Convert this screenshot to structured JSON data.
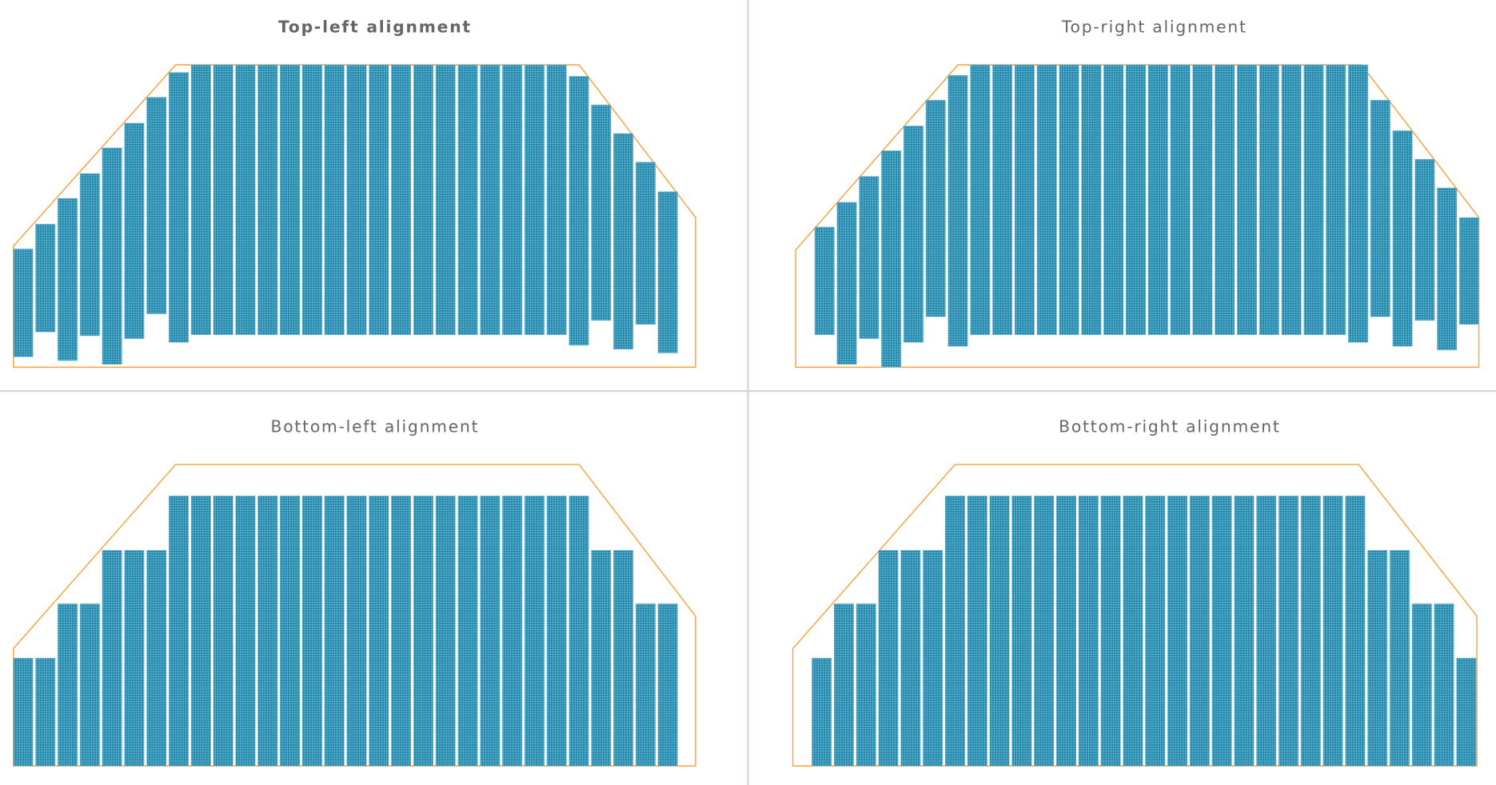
{
  "panels": [
    {
      "title": "Top-left alignment"
    },
    {
      "title": "Top-right alignment"
    },
    {
      "title": "Bottom-left alignment"
    },
    {
      "title": "Bottom-right alignment"
    }
  ],
  "colors": {
    "outline": "#f7a23a",
    "panel_fill": "#1a80a4",
    "panel_grid": "#5fb2cf",
    "divider": "#d6d6d6",
    "title": "#666666"
  }
}
